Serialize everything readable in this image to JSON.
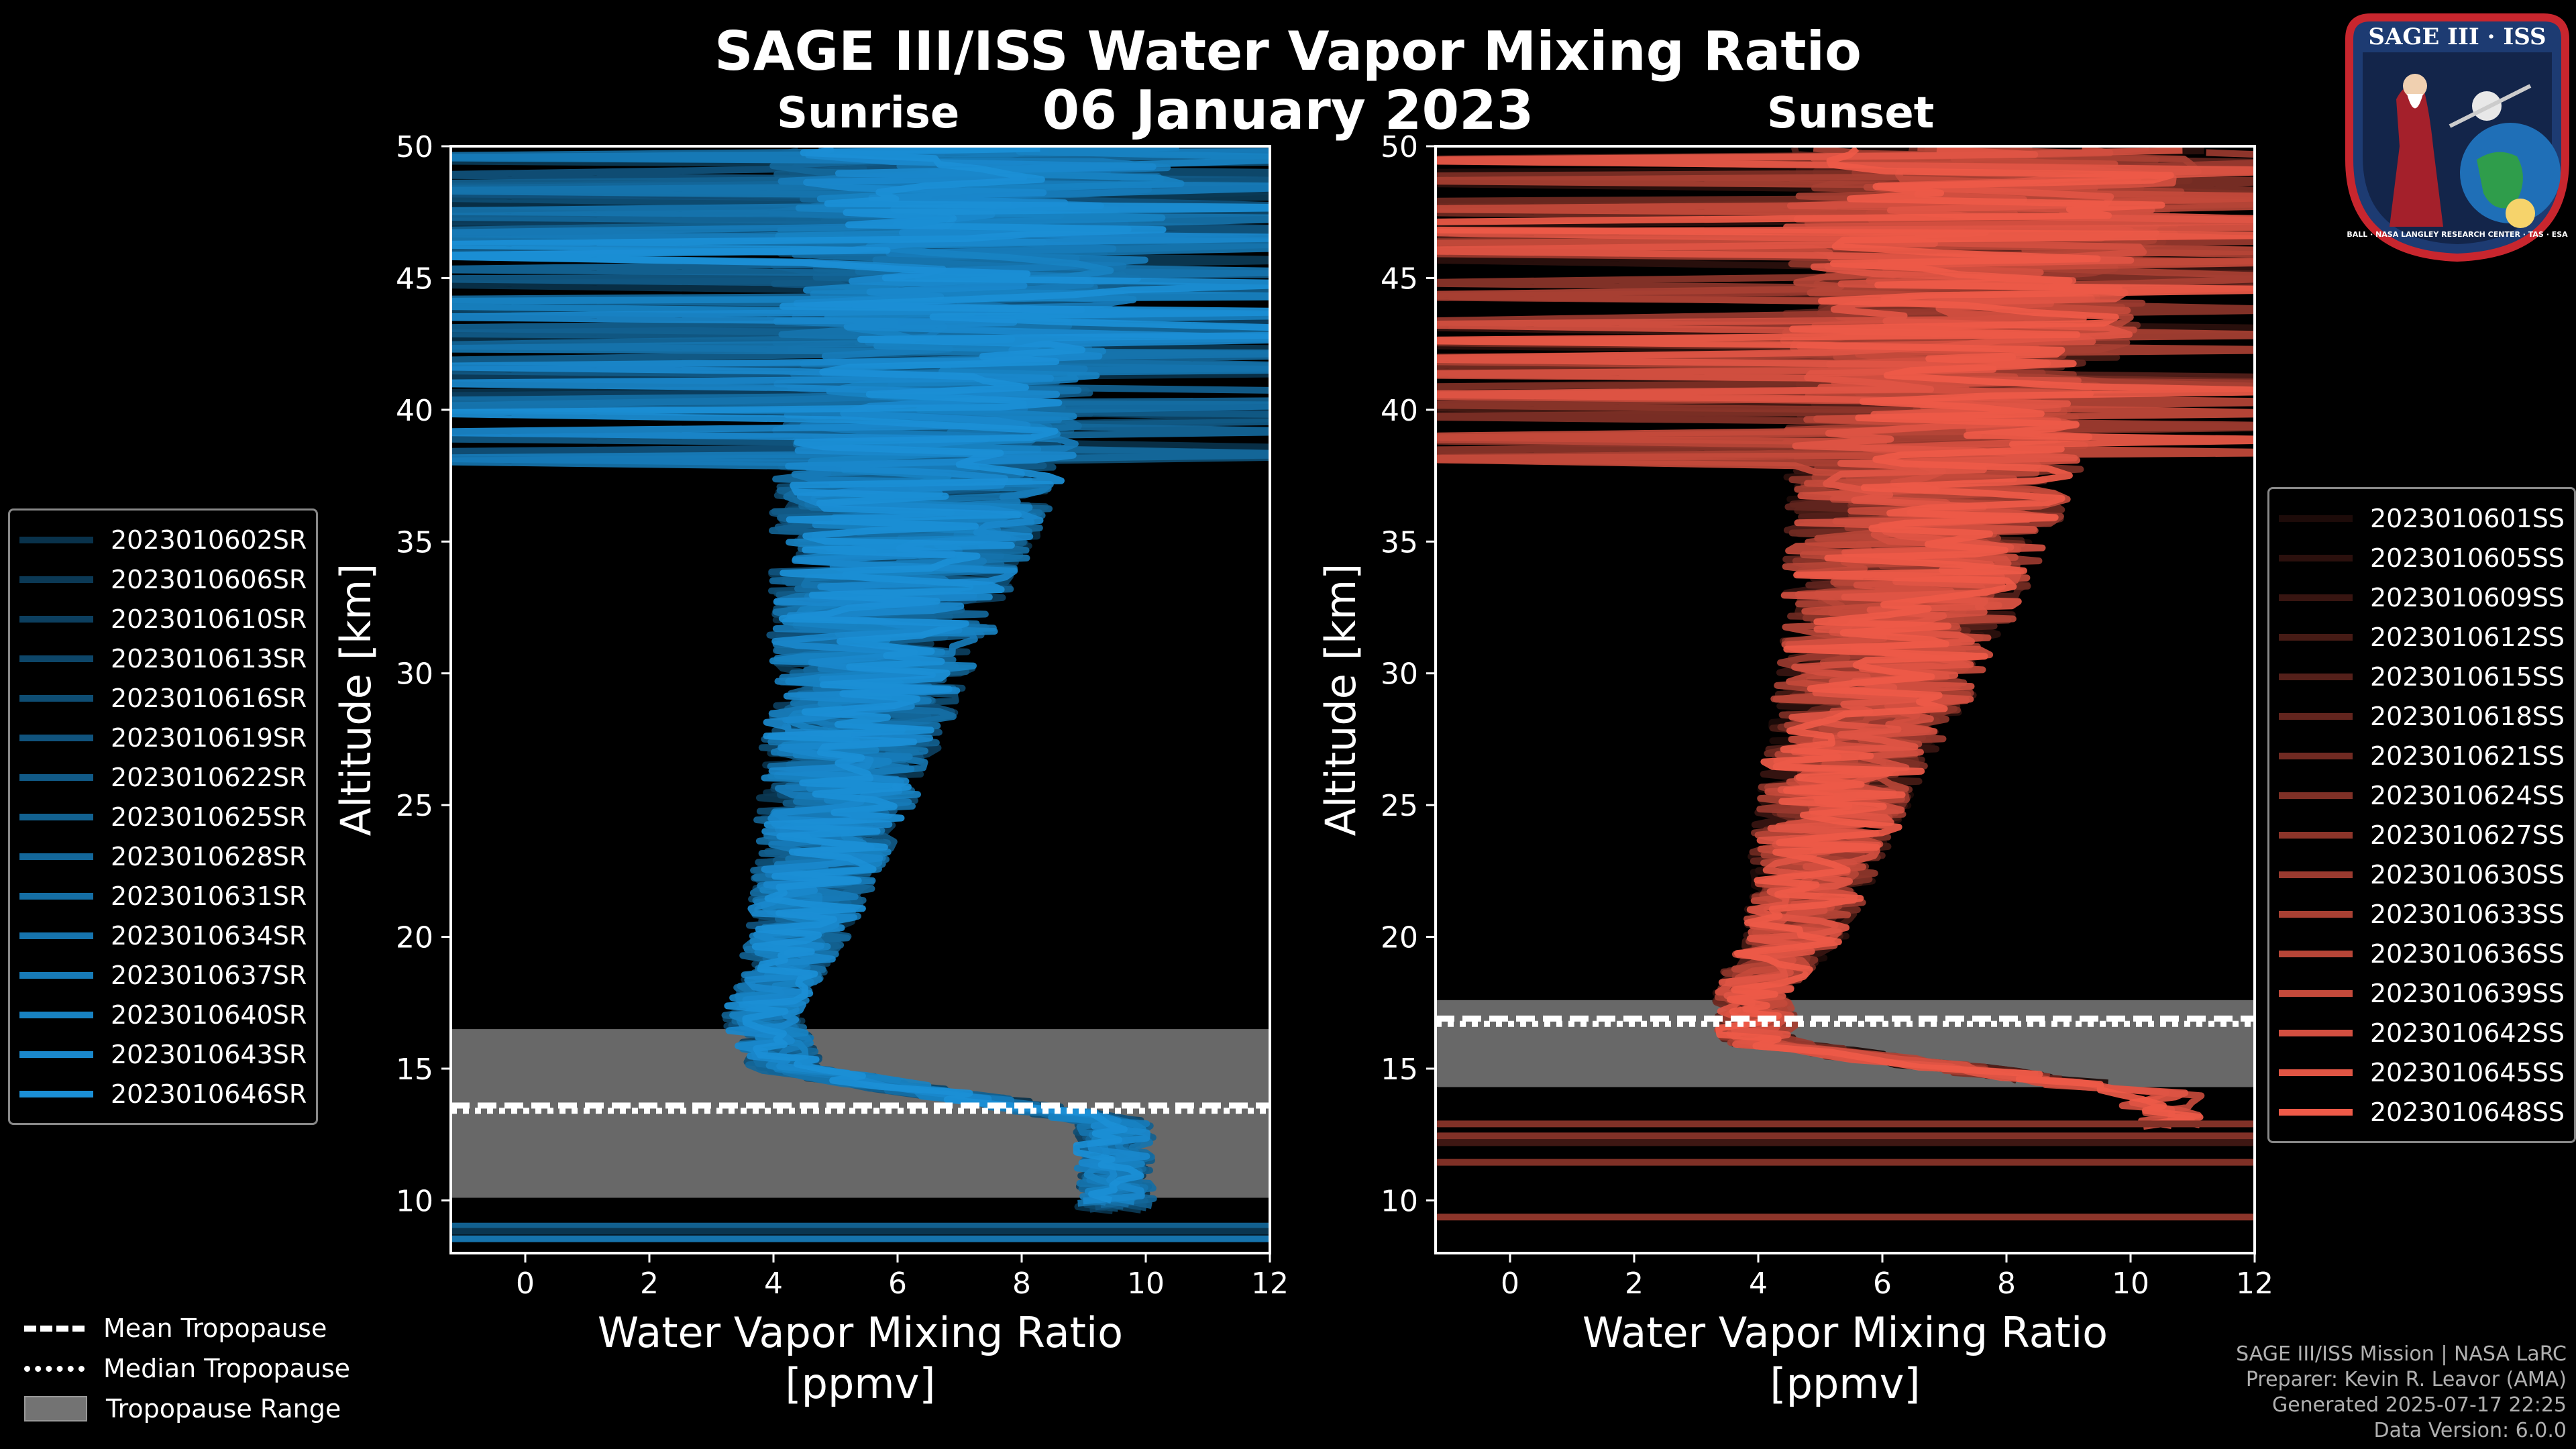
{
  "title": "SAGE III/ISS Water Vapor Mixing Ratio",
  "date": "06 January 2023",
  "logo": {
    "text_top": "SAGE III · ISS",
    "text_ring": "BALL · NASA LANGLEY RESEARCH CENTER · TAS · ESA"
  },
  "credits": {
    "line1": "SAGE III/ISS Mission | NASA LaRC",
    "line2": "Preparer: Kevin R. Leavor (AMA)",
    "line3": "Generated 2025-07-17 22:25",
    "line4": "Data Version: 6.0.0"
  },
  "bottom_legend": {
    "mean": "Mean Tropopause",
    "median": "Median Tropopause",
    "range": "Tropopause Range"
  },
  "colors": {
    "sunrise": "#1b8fd6",
    "sunset": "#ee5a48",
    "tropo_range": "#737373"
  },
  "chart_data": [
    {
      "type": "line",
      "subtitle": "Sunrise",
      "xlabel": "Water Vapor Mixing Ratio\n[ppmv]",
      "xlabel_line1": "Water Vapor Mixing Ratio",
      "xlabel_line2": "[ppmv]",
      "ylabel": "Altitude [km]",
      "xlim": [
        -1.2,
        12
      ],
      "ylim": [
        8,
        50
      ],
      "xticks": [
        0,
        2,
        4,
        6,
        8,
        10,
        12
      ],
      "yticks": [
        10,
        15,
        20,
        25,
        30,
        35,
        40,
        45,
        50
      ],
      "tropopause": {
        "range": [
          10.1,
          16.5
        ],
        "mean": 13.6,
        "median": 13.4
      },
      "typical_profile": {
        "altitude_km": [
          13,
          15,
          17,
          20,
          25,
          30,
          35,
          40,
          45,
          49
        ],
        "ppmv": [
          9.5,
          4.2,
          3.8,
          4.4,
          5.0,
          5.6,
          6.1,
          6.6,
          7.0,
          7.3
        ]
      },
      "series": [
        {
          "name": "2023010602SR"
        },
        {
          "name": "2023010606SR"
        },
        {
          "name": "2023010610SR"
        },
        {
          "name": "2023010613SR"
        },
        {
          "name": "2023010616SR"
        },
        {
          "name": "2023010619SR"
        },
        {
          "name": "2023010622SR"
        },
        {
          "name": "2023010625SR"
        },
        {
          "name": "2023010628SR"
        },
        {
          "name": "2023010631SR"
        },
        {
          "name": "2023010634SR"
        },
        {
          "name": "2023010637SR"
        },
        {
          "name": "2023010640SR"
        },
        {
          "name": "2023010643SR"
        },
        {
          "name": "2023010646SR"
        }
      ]
    },
    {
      "type": "line",
      "subtitle": "Sunset",
      "xlabel": "Water Vapor Mixing Ratio\n[ppmv]",
      "xlabel_line1": "Water Vapor Mixing Ratio",
      "xlabel_line2": "[ppmv]",
      "ylabel": "Altitude [km]",
      "xlim": [
        -1.2,
        12
      ],
      "ylim": [
        8,
        50
      ],
      "xticks": [
        0,
        2,
        4,
        6,
        8,
        10,
        12
      ],
      "yticks": [
        10,
        15,
        20,
        25,
        30,
        35,
        40,
        45,
        50
      ],
      "tropopause": {
        "range": [
          14.3,
          17.6
        ],
        "mean": 16.9,
        "median": 16.7
      },
      "typical_profile": {
        "altitude_km": [
          14,
          16,
          18,
          20,
          25,
          30,
          35,
          40,
          45,
          49
        ],
        "ppmv": [
          10.5,
          4.0,
          3.9,
          4.6,
          5.2,
          6.0,
          6.6,
          7.0,
          7.4,
          7.8
        ]
      },
      "series": [
        {
          "name": "2023010601SS"
        },
        {
          "name": "2023010605SS"
        },
        {
          "name": "2023010609SS"
        },
        {
          "name": "2023010612SS"
        },
        {
          "name": "2023010615SS"
        },
        {
          "name": "2023010618SS"
        },
        {
          "name": "2023010621SS"
        },
        {
          "name": "2023010624SS"
        },
        {
          "name": "2023010627SS"
        },
        {
          "name": "2023010630SS"
        },
        {
          "name": "2023010633SS"
        },
        {
          "name": "2023010636SS"
        },
        {
          "name": "2023010639SS"
        },
        {
          "name": "2023010642SS"
        },
        {
          "name": "2023010645SS"
        },
        {
          "name": "2023010648SS"
        }
      ]
    }
  ]
}
